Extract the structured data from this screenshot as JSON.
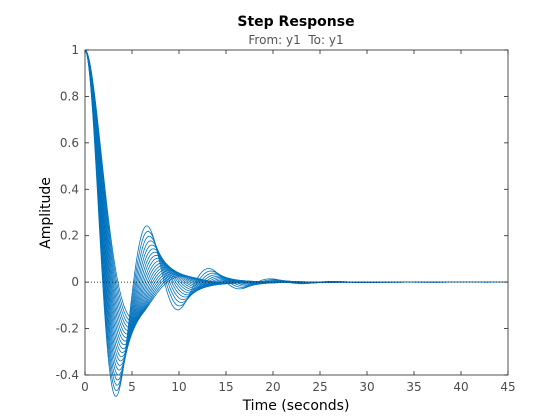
{
  "chart_data": {
    "type": "line",
    "title": "Step Response",
    "subtitle": "From: y1  To: y1",
    "xlabel": "Time (seconds)",
    "ylabel": "Amplitude",
    "xlim": [
      0,
      45
    ],
    "ylim": [
      -0.4,
      1
    ],
    "xticks": [
      0,
      5,
      10,
      15,
      20,
      25,
      30,
      35,
      40,
      45
    ],
    "yticks": [
      -0.4,
      -0.2,
      0,
      0.2,
      0.4,
      0.6,
      0.8,
      1
    ],
    "reference_line": {
      "y": 0,
      "style": "dotted"
    },
    "grid": false,
    "line_color": "#0072BD",
    "series_model": "damped second-order step responses, y(t) = 1 - e^(-zeta*wn*t)(cos(wd*t) + zeta/sqrt(1-zeta^2) sin(wd*t)) - 1",
    "series": [
      {
        "zeta": 0.22,
        "wn": 0.98
      },
      {
        "zeta": 0.235,
        "wn": 0.965
      },
      {
        "zeta": 0.25,
        "wn": 0.95
      },
      {
        "zeta": 0.265,
        "wn": 0.935
      },
      {
        "zeta": 0.28,
        "wn": 0.92
      },
      {
        "zeta": 0.295,
        "wn": 0.905
      },
      {
        "zeta": 0.31,
        "wn": 0.89
      },
      {
        "zeta": 0.325,
        "wn": 0.875
      },
      {
        "zeta": 0.34,
        "wn": 0.86
      },
      {
        "zeta": 0.355,
        "wn": 0.845
      },
      {
        "zeta": 0.37,
        "wn": 0.83
      },
      {
        "zeta": 0.385,
        "wn": 0.815
      },
      {
        "zeta": 0.4,
        "wn": 0.8
      },
      {
        "zeta": 0.415,
        "wn": 0.785
      },
      {
        "zeta": 0.43,
        "wn": 0.77
      },
      {
        "zeta": 0.445,
        "wn": 0.755
      },
      {
        "zeta": 0.46,
        "wn": 0.74
      },
      {
        "zeta": 0.475,
        "wn": 0.725
      },
      {
        "zeta": 0.49,
        "wn": 0.71
      },
      {
        "zeta": 0.505,
        "wn": 0.695
      }
    ]
  }
}
